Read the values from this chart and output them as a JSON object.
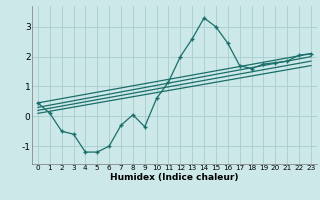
{
  "xlabel": "Humidex (Indice chaleur)",
  "bg_color": "#cce8e8",
  "grid_color": "#aacccc",
  "line_color": "#1a6e6a",
  "xlim": [
    -0.5,
    23.5
  ],
  "ylim": [
    -1.6,
    3.7
  ],
  "yticks": [
    -1,
    0,
    1,
    2,
    3
  ],
  "xticks": [
    0,
    1,
    2,
    3,
    4,
    5,
    6,
    7,
    8,
    9,
    10,
    11,
    12,
    13,
    14,
    15,
    16,
    17,
    18,
    19,
    20,
    21,
    22,
    23
  ],
  "main_x": [
    0,
    1,
    2,
    3,
    4,
    5,
    6,
    7,
    8,
    9,
    10,
    11,
    12,
    13,
    14,
    15,
    16,
    17,
    18,
    19,
    20,
    21,
    22,
    23
  ],
  "main_y": [
    0.45,
    0.1,
    -0.5,
    -0.6,
    -1.2,
    -1.2,
    -1.0,
    -0.3,
    0.05,
    -0.35,
    0.6,
    1.15,
    2.0,
    2.6,
    3.3,
    3.0,
    2.45,
    1.7,
    1.6,
    1.75,
    1.8,
    1.85,
    2.05,
    2.1
  ],
  "straight_lines": [
    {
      "x0": 0,
      "y0": 0.45,
      "x1": 23,
      "y1": 2.1
    },
    {
      "x0": 0,
      "y0": 0.3,
      "x1": 23,
      "y1": 2.0
    },
    {
      "x0": 0,
      "y0": 0.2,
      "x1": 23,
      "y1": 1.85
    },
    {
      "x0": 0,
      "y0": 0.1,
      "x1": 23,
      "y1": 1.7
    }
  ]
}
